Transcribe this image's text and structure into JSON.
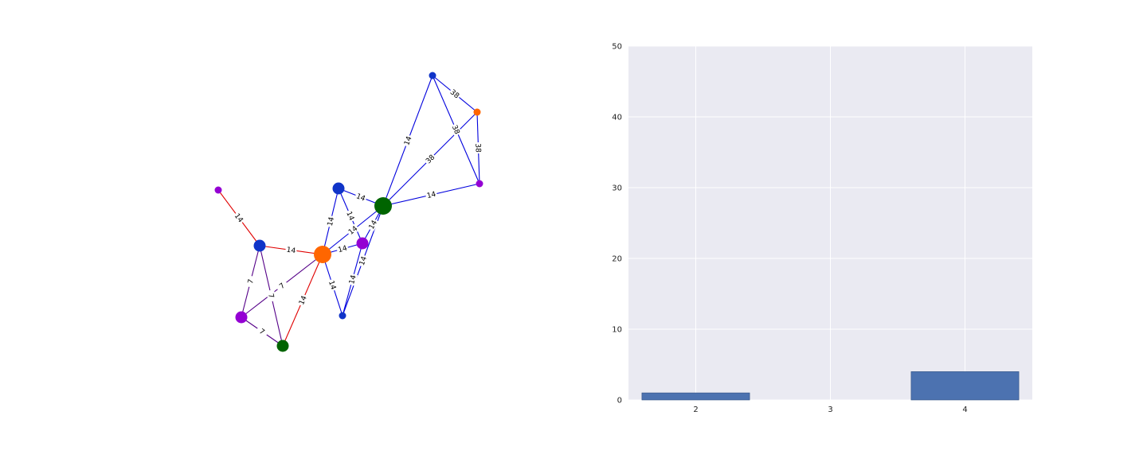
{
  "colors": {
    "panel_bg": "#eaeaf2",
    "grid": "#ffffff",
    "bar_fill": "#4c72b0",
    "bar_edge": "#2f4f80",
    "edge_blue": "#0000dd",
    "edge_red": "#e00000",
    "edge_mixed": "#550088",
    "node_blue": "#1034c8",
    "node_orange": "#ff6600",
    "node_purple": "#9400d3",
    "node_green": "#006400"
  },
  "chart_data": [
    {
      "type": "network",
      "nodes": [
        {
          "id": "n1",
          "color": "blue",
          "size": "small"
        },
        {
          "id": "n2",
          "color": "orange",
          "size": "small"
        },
        {
          "id": "n3",
          "color": "purple",
          "size": "small"
        },
        {
          "id": "n4",
          "color": "purple",
          "size": "small"
        },
        {
          "id": "n5",
          "color": "blue",
          "size": "medium"
        },
        {
          "id": "n6",
          "color": "green",
          "size": "large"
        },
        {
          "id": "n7",
          "color": "blue",
          "size": "medium"
        },
        {
          "id": "n8",
          "color": "orange",
          "size": "large"
        },
        {
          "id": "n9",
          "color": "purple",
          "size": "medium"
        },
        {
          "id": "n10",
          "color": "purple",
          "size": "medium"
        },
        {
          "id": "n11",
          "color": "green",
          "size": "medium"
        },
        {
          "id": "n12",
          "color": "blue",
          "size": "small"
        }
      ],
      "edges": [
        {
          "source": "n1",
          "target": "n2",
          "label": "38",
          "color": "blue"
        },
        {
          "source": "n1",
          "target": "n3",
          "label": "38",
          "color": "blue"
        },
        {
          "source": "n1",
          "target": "n6",
          "label": "14",
          "color": "blue"
        },
        {
          "source": "n2",
          "target": "n3",
          "label": "38",
          "color": "blue"
        },
        {
          "source": "n2",
          "target": "n6",
          "label": "38",
          "color": "blue"
        },
        {
          "source": "n3",
          "target": "n6",
          "label": "14",
          "color": "blue"
        },
        {
          "source": "n5",
          "target": "n6",
          "label": "14",
          "color": "blue"
        },
        {
          "source": "n5",
          "target": "n8",
          "label": "14",
          "color": "blue"
        },
        {
          "source": "n5",
          "target": "n9",
          "label": "14",
          "color": "blue"
        },
        {
          "source": "n6",
          "target": "n8",
          "label": "14",
          "color": "blue"
        },
        {
          "source": "n6",
          "target": "n9",
          "label": "14",
          "color": "blue"
        },
        {
          "source": "n6",
          "target": "n12",
          "label": "14",
          "color": "blue"
        },
        {
          "source": "n8",
          "target": "n9",
          "label": "14",
          "color": "blue"
        },
        {
          "source": "n8",
          "target": "n12",
          "label": "14",
          "color": "blue"
        },
        {
          "source": "n9",
          "target": "n12",
          "label": "14",
          "color": "blue"
        },
        {
          "source": "n4",
          "target": "n7",
          "label": "14",
          "color": "red"
        },
        {
          "source": "n7",
          "target": "n8",
          "label": "14",
          "color": "red"
        },
        {
          "source": "n7",
          "target": "n10",
          "label": "7",
          "color": "mixed"
        },
        {
          "source": "n7",
          "target": "n11",
          "label": "7",
          "color": "mixed"
        },
        {
          "source": "n10",
          "target": "n11",
          "label": "7",
          "color": "mixed"
        },
        {
          "source": "n10",
          "target": "n8",
          "label": "7",
          "color": "mixed"
        },
        {
          "source": "n11",
          "target": "n8",
          "label": "14",
          "color": "red"
        }
      ]
    },
    {
      "type": "bar",
      "categories": [
        "2",
        "3",
        "4"
      ],
      "values": [
        1,
        0,
        4
      ],
      "ylim": [
        0,
        50
      ],
      "yticks": [
        "0",
        "10",
        "20",
        "30",
        "40",
        "50"
      ],
      "grid": true,
      "title": "",
      "xlabel": "",
      "ylabel": ""
    }
  ]
}
